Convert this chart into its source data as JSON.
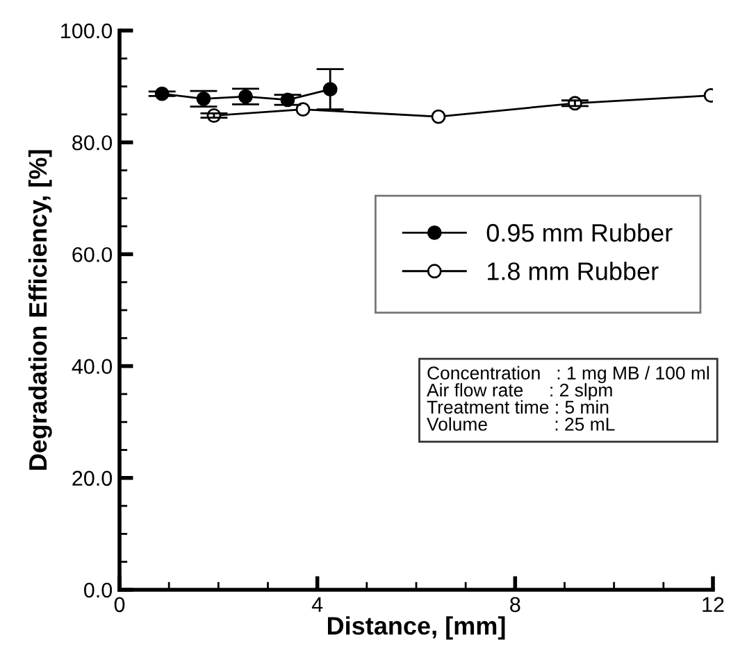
{
  "chart_data": {
    "type": "line",
    "xlabel": "Distance, [mm]",
    "ylabel": "Degradation Efficiency, [%]",
    "xlim": [
      0,
      12
    ],
    "xticks": [
      0,
      4,
      8,
      12
    ],
    "ylim": [
      0,
      100
    ],
    "yticks": [
      {
        "value": 0,
        "label": "0.0"
      },
      {
        "value": 20,
        "label": "20.0"
      },
      {
        "value": 40,
        "label": "40.0"
      },
      {
        "value": 60,
        "label": "60.0"
      },
      {
        "value": 80,
        "label": "80.0"
      },
      {
        "value": 100,
        "label": "100.0"
      }
    ],
    "grid": false,
    "legend": "right",
    "marker": "circle",
    "line_style": "solid",
    "series": [
      {
        "name": "0.95 mm Rubber",
        "color": "#000000",
        "x": [
          0.86,
          1.7,
          2.55,
          3.4,
          4.26
        ],
        "values": [
          88.7,
          87.8,
          88.2,
          87.6,
          89.5
        ],
        "errors": [
          0.4,
          1.4,
          1.4,
          0.9,
          3.6
        ]
      },
      {
        "name": "1.8 mm Rubber",
        "color": "#000000",
        "x": [
          1.91,
          3.71,
          6.45,
          9.21,
          11.96
        ],
        "values": [
          84.8,
          85.9,
          84.6,
          87.0,
          88.4
        ],
        "errors": [
          0.4,
          null,
          null,
          0.5,
          null
        ]
      }
    ],
    "annotations": [
      "Concentration   : 1 mg MB / 100 ml\nAir flow rate     : 2 slpm\nTreatment time : 5 min\nVolume             : 25 mL"
    ]
  }
}
